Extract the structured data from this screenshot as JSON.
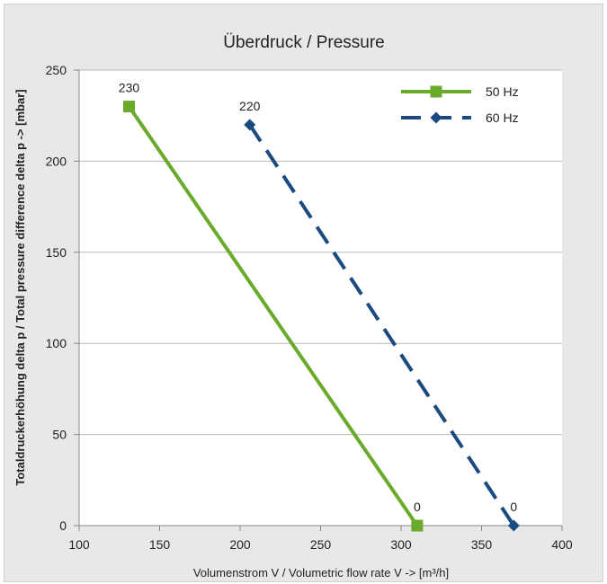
{
  "chart_data": {
    "type": "line",
    "title": "Überdruck / Pressure",
    "xlabel": "Volumenstrom V / Volumetric flow rate V -> [m³/h]",
    "ylabel": "Totaldruckerhöhung delta p / Total pressure difference delta p -> [mbar]",
    "xlim": [
      100,
      400
    ],
    "ylim": [
      0,
      250
    ],
    "xticks": [
      100,
      150,
      200,
      250,
      300,
      350,
      400
    ],
    "yticks": [
      0,
      50,
      100,
      150,
      200,
      250
    ],
    "grid": "horizontal",
    "legend": "top-right",
    "series": [
      {
        "name": "50 Hz",
        "color": "#6aaa2a",
        "marker": "square",
        "style": "solid",
        "x": [
          131,
          310
        ],
        "y": [
          230,
          0
        ],
        "labels": [
          "230",
          "0"
        ]
      },
      {
        "name": "60 Hz",
        "color": "#1a4a80",
        "marker": "diamond",
        "style": "dashed",
        "x": [
          206,
          370
        ],
        "y": [
          220,
          0
        ],
        "labels": [
          "220",
          "0"
        ]
      }
    ]
  }
}
